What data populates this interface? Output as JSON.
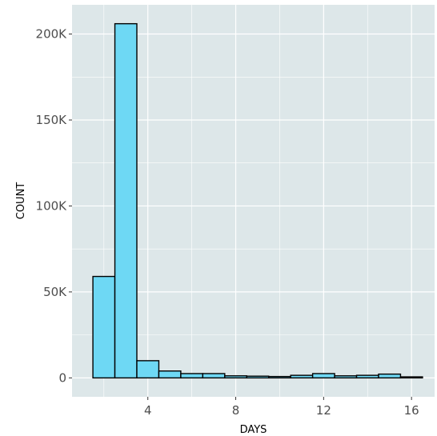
{
  "chart_data": {
    "type": "bar",
    "xlabel": "DAYS",
    "ylabel": "COUNT",
    "xlim": [
      0.55,
      17.05
    ],
    "ylim": [
      -11000,
      217000
    ],
    "x_ticks": [
      4,
      8,
      12,
      16
    ],
    "x_tick_labels": [
      "4",
      "8",
      "12",
      "16"
    ],
    "y_ticks": [
      0,
      50000,
      100000,
      150000,
      200000
    ],
    "y_tick_labels": [
      "0",
      "50K",
      "100K",
      "150K",
      "200K"
    ],
    "bin_width": 1,
    "bins": [
      2,
      3,
      4,
      5,
      6,
      7,
      8,
      9,
      10,
      11,
      12,
      13,
      14,
      15,
      16
    ],
    "values": [
      59000,
      206000,
      10000,
      4000,
      2500,
      2500,
      1200,
      1000,
      800,
      1500,
      2500,
      1200,
      1500,
      2200,
      600
    ],
    "grid": true,
    "legend": "none",
    "colors": {
      "panel": "#dde7e9",
      "grid": "#ffffff",
      "bar_fill": "#6ed8f4",
      "bar_stroke": "#000000"
    }
  }
}
